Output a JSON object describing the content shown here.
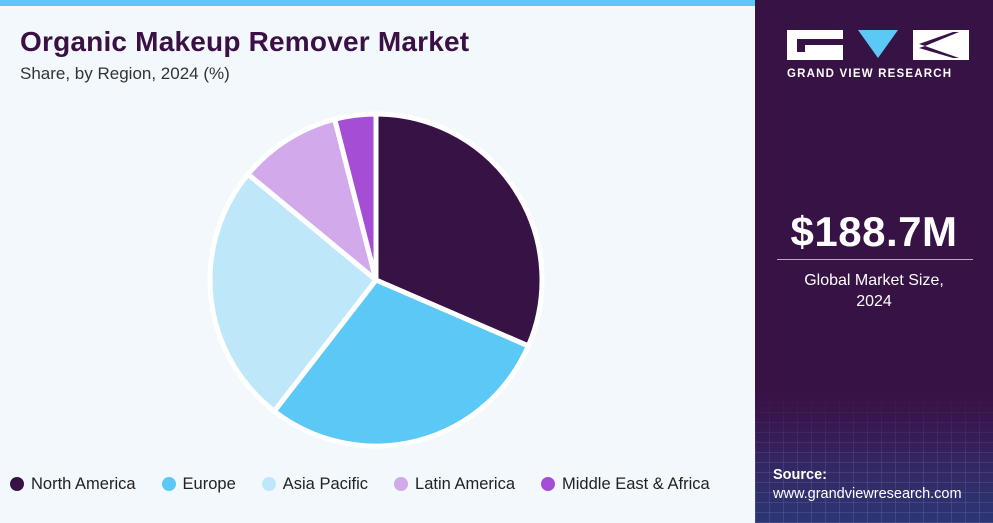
{
  "header": {
    "title": "Organic Makeup Remover Market",
    "subtitle": "Share, by Region, 2024 (%)"
  },
  "chart_data": {
    "type": "pie",
    "title": "Organic Makeup Remover Market",
    "subtitle": "Share, by Region, 2024 (%)",
    "categories": [
      "North America",
      "Europe",
      "Asia Pacific",
      "Latin America",
      "Middle East & Africa"
    ],
    "values": [
      31.5,
      29.0,
      25.5,
      10.0,
      4.0
    ],
    "colors": [
      "#371245",
      "#5bc8f5",
      "#bfe7fa",
      "#d2a9ea",
      "#a64dd6"
    ],
    "legend_position": "bottom"
  },
  "legend": {
    "items": [
      {
        "label": "North America",
        "color": "#371245"
      },
      {
        "label": "Europe",
        "color": "#5bc8f5"
      },
      {
        "label": "Asia Pacific",
        "color": "#bfe7fa"
      },
      {
        "label": "Latin America",
        "color": "#d2a9ea"
      },
      {
        "label": "Middle East & Africa",
        "color": "#a64dd6"
      }
    ]
  },
  "sidebar": {
    "brand": "GRAND VIEW RESEARCH",
    "logo_icon": "grand-view-research-logo",
    "market_value": "$188.7M",
    "market_label_line1": "Global Market Size,",
    "market_label_line2": "2024",
    "source_label": "Source:",
    "source_url": "www.grandviewresearch.com"
  },
  "colors": {
    "accent": "#5bc8f5",
    "panel": "#371245",
    "background": "#f3f8fc"
  }
}
